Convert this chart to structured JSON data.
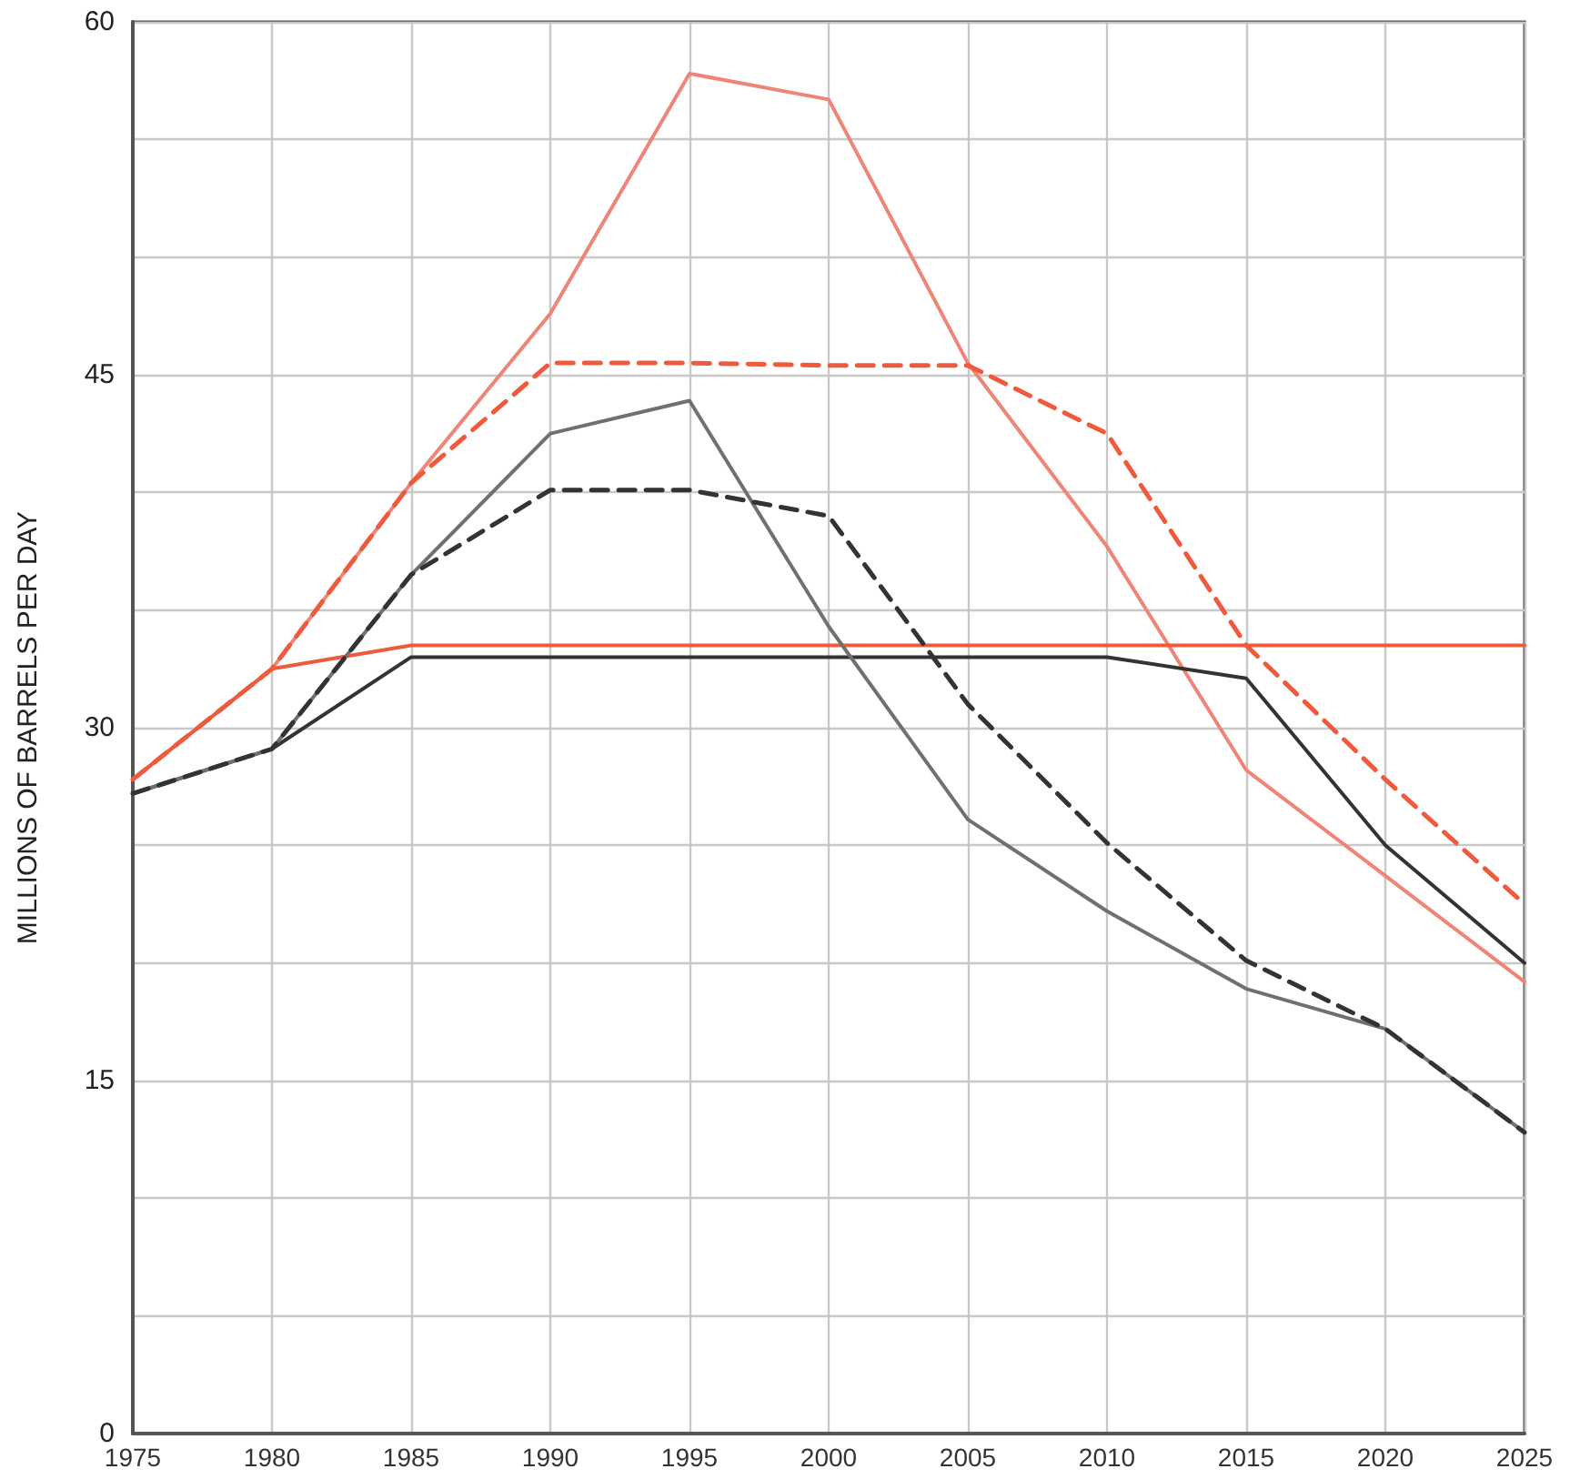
{
  "chart_data": {
    "type": "line",
    "ylabel": "MILLIONS OF BARRELS PER DAY",
    "x": [
      1975,
      1980,
      1985,
      1990,
      1995,
      2000,
      2005,
      2010,
      2015,
      2020,
      2025
    ],
    "series": [
      {
        "color": "#ef8576",
        "line_style": "solid",
        "values": [
          27.8,
          32.5,
          40.4,
          47.6,
          57.8,
          56.7,
          45.5,
          37.7,
          28.2,
          23.7,
          19.2
        ]
      },
      {
        "color": "#f05a3c",
        "line_style": "dashed",
        "values": [
          27.8,
          32.5,
          40.4,
          45.5,
          45.5,
          45.4,
          45.4,
          42.5,
          33.5,
          27.8,
          22.5
        ]
      },
      {
        "color": "#f05a3c",
        "line_style": "solid",
        "values": [
          27.8,
          32.5,
          33.5,
          33.5,
          33.5,
          33.5,
          33.5,
          33.5,
          33.5,
          33.5,
          33.5
        ]
      },
      {
        "color": "#333333",
        "line_style": "solid",
        "values": [
          27.2,
          29.1,
          33.0,
          33.0,
          33.0,
          33.0,
          33.0,
          33.0,
          32.1,
          25.0,
          20.0
        ]
      },
      {
        "color": "#707070",
        "line_style": "solid",
        "values": [
          27.2,
          29.1,
          36.5,
          42.5,
          43.9,
          34.3,
          26.1,
          22.2,
          18.9,
          17.2,
          12.8
        ]
      },
      {
        "color": "#333333",
        "line_style": "dashed",
        "values": [
          27.2,
          29.1,
          36.5,
          40.1,
          40.1,
          39.0,
          31.0,
          25.1,
          20.1,
          17.2,
          12.8
        ]
      }
    ],
    "xlim": [
      1975,
      2025
    ],
    "xticks": [
      1975,
      1980,
      1985,
      1990,
      1995,
      2000,
      2005,
      2010,
      2015,
      2020,
      2025
    ],
    "ylim": [
      0,
      60
    ],
    "yticks": [
      0,
      {
        "value": 5,
        "label": null
      },
      {
        "value": 10,
        "label": null
      },
      15,
      {
        "value": 20,
        "label": null
      },
      {
        "value": 25,
        "label": null
      },
      30,
      {
        "value": 35,
        "label": null
      },
      {
        "value": 40,
        "label": null
      },
      45,
      {
        "value": 50,
        "label": null
      },
      {
        "value": 55,
        "label": null
      },
      60
    ],
    "grid": true,
    "marker": "none"
  }
}
